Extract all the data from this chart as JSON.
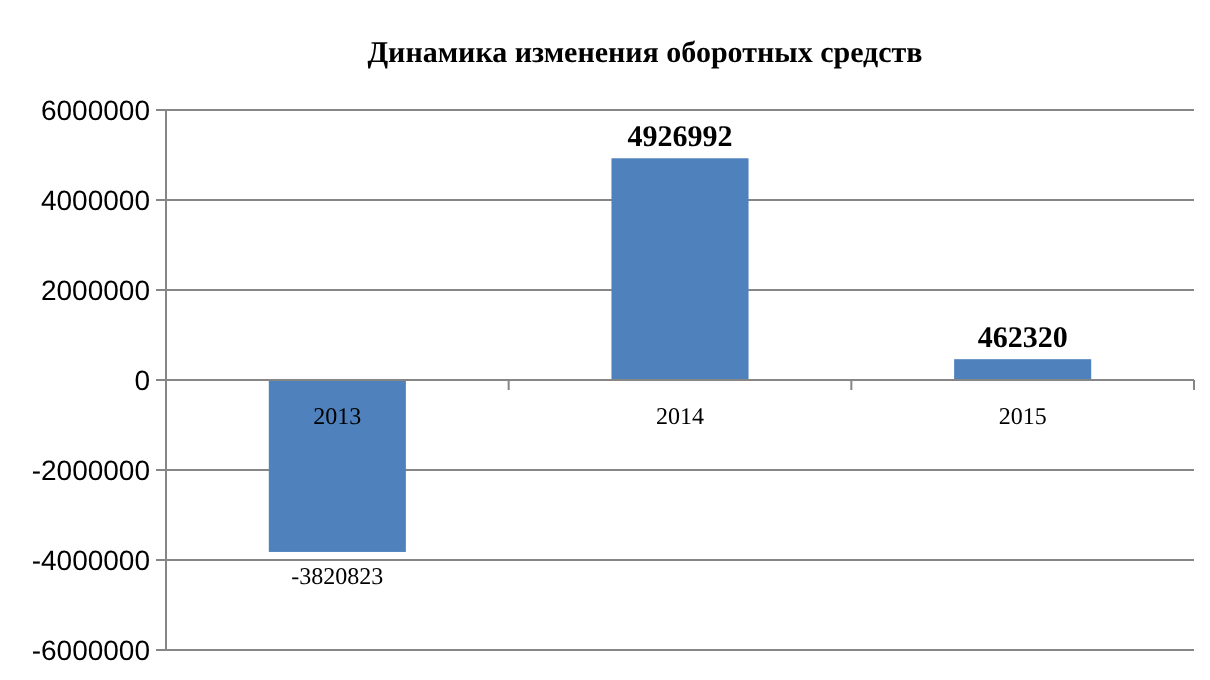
{
  "chart_data": {
    "type": "bar",
    "title": "Динамика изменения оборотных средств",
    "categories": [
      "2013",
      "2014",
      "2015"
    ],
    "values": [
      -3820823,
      4926992,
      462320
    ],
    "color": "#4f81bd",
    "ylim": [
      -6000000,
      6000000
    ],
    "yticks": [
      -6000000,
      -4000000,
      -2000000,
      0,
      2000000,
      4000000,
      6000000
    ],
    "grid": "y",
    "data_labels": true
  }
}
